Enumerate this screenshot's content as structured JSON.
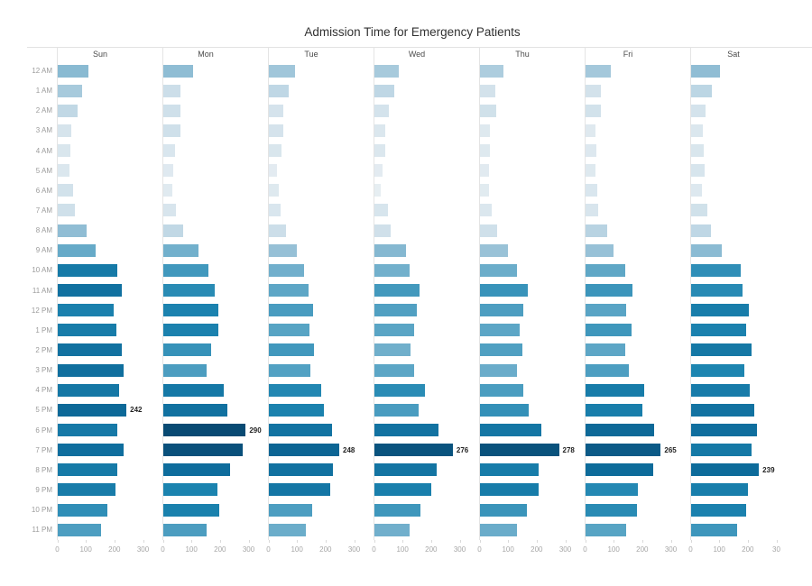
{
  "title": "Admission Time for Emergency Patients",
  "chart_data": {
    "type": "bar",
    "orientation": "horizontal",
    "facet_by": "day_of_week",
    "title": "Admission Time for Emergency Patients",
    "xlabel": "",
    "ylabel": "",
    "xlim": [
      0,
      300
    ],
    "grid": "column separators only",
    "categories": [
      "12 AM",
      "1 AM",
      "2 AM",
      "3 AM",
      "4 AM",
      "5 AM",
      "6 AM",
      "7 AM",
      "8 AM",
      "9 AM",
      "10 AM",
      "11 AM",
      "12 PM",
      "1 PM",
      "2 PM",
      "3 PM",
      "4 PM",
      "5 PM",
      "6 PM",
      "7 PM",
      "8 PM",
      "9 PM",
      "10 PM",
      "11 PM"
    ],
    "series": [
      {
        "name": "Sun",
        "values": [
          109,
          88,
          70,
          50,
          45,
          42,
          55,
          60,
          104,
          134,
          210,
          226,
          197,
          206,
          226,
          231,
          215,
          242,
          211,
          232,
          210,
          205,
          175,
          152
        ]
      },
      {
        "name": "Mon",
        "values": [
          105,
          62,
          60,
          60,
          44,
          35,
          34,
          46,
          70,
          125,
          161,
          180,
          193,
          195,
          170,
          153,
          213,
          226,
          290,
          280,
          236,
          192,
          196,
          153
        ]
      },
      {
        "name": "Tue",
        "values": [
          93,
          71,
          51,
          51,
          45,
          30,
          37,
          44,
          62,
          100,
          126,
          140,
          155,
          144,
          161,
          148,
          185,
          194,
          222,
          248,
          227,
          216,
          152,
          130
        ]
      },
      {
        "name": "Wed",
        "values": [
          88,
          71,
          53,
          41,
          41,
          30,
          24,
          48,
          59,
          112,
          125,
          160,
          149,
          142,
          127,
          141,
          179,
          155,
          225,
          276,
          221,
          199,
          163,
          126
        ]
      },
      {
        "name": "Thu",
        "values": [
          84,
          54,
          58,
          37,
          37,
          33,
          32,
          42,
          60,
          98,
          130,
          168,
          152,
          141,
          150,
          131,
          154,
          172,
          217,
          278,
          206,
          206,
          167,
          131
        ]
      },
      {
        "name": "Fri",
        "values": [
          90,
          54,
          56,
          36,
          39,
          37,
          44,
          46,
          76,
          99,
          139,
          165,
          143,
          163,
          140,
          152,
          206,
          202,
          242,
          265,
          239,
          184,
          180,
          144
        ]
      },
      {
        "name": "Sat",
        "values": [
          104,
          73,
          52,
          42,
          45,
          48,
          39,
          58,
          71,
          108,
          175,
          181,
          204,
          195,
          214,
          189,
          207,
          224,
          232,
          212,
          239,
          202,
          195,
          164
        ]
      }
    ],
    "annotations": [
      {
        "day": "Sun",
        "category": "5 PM",
        "text": "242"
      },
      {
        "day": "Mon",
        "category": "6 PM",
        "text": "290"
      },
      {
        "day": "Tue",
        "category": "7 PM",
        "text": "248"
      },
      {
        "day": "Wed",
        "category": "7 PM",
        "text": "276"
      },
      {
        "day": "Thu",
        "category": "7 PM",
        "text": "278"
      },
      {
        "day": "Fri",
        "category": "7 PM",
        "text": "265"
      },
      {
        "day": "Sat",
        "category": "8 PM",
        "text": "239"
      }
    ],
    "x_tick_labels": [
      "0",
      "100",
      "200",
      "300"
    ],
    "x_tick_labels_last_column": [
      "0",
      "100",
      "200",
      "30"
    ],
    "legend": "none",
    "colors": {
      "scale_stops": [
        [
          20,
          "#e9eff3"
        ],
        [
          60,
          "#cfe0ea"
        ],
        [
          100,
          "#96c0d6"
        ],
        [
          145,
          "#56a3c4"
        ],
        [
          190,
          "#1c84b0"
        ],
        [
          240,
          "#0d6a9a"
        ],
        [
          290,
          "#084a73"
        ]
      ],
      "value_label": "#222222",
      "axis_text": "#a6a6a6",
      "header_text": "#4b4b4b",
      "gridline": "#e4e4e4"
    }
  }
}
